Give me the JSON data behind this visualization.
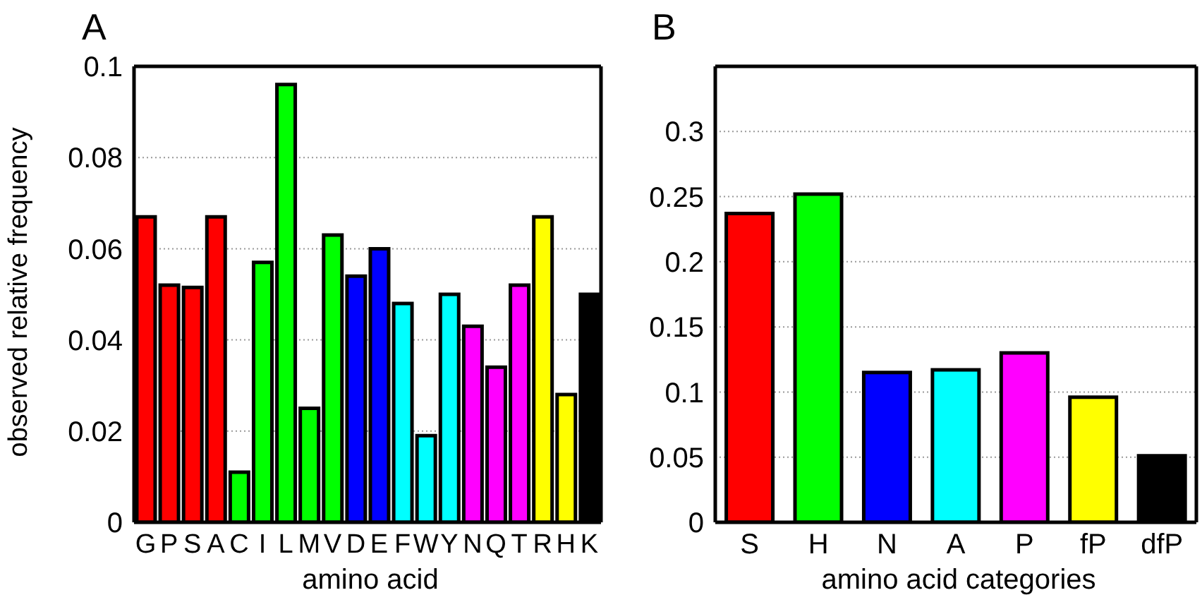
{
  "chart_data": [
    {
      "type": "bar",
      "title": "A",
      "xlabel": "amino acid",
      "ylabel": "observed relative frequency",
      "categories": [
        "G",
        "P",
        "S",
        "A",
        "C",
        "I",
        "L",
        "M",
        "V",
        "D",
        "E",
        "F",
        "W",
        "Y",
        "N",
        "Q",
        "T",
        "R",
        "H",
        "K"
      ],
      "values": [
        0.067,
        0.052,
        0.0515,
        0.067,
        0.011,
        0.057,
        0.096,
        0.025,
        0.063,
        0.054,
        0.06,
        0.048,
        0.019,
        0.05,
        0.043,
        0.034,
        0.052,
        0.067,
        0.028,
        0.05
      ],
      "colors": [
        "#ff0000",
        "#ff0000",
        "#ff0000",
        "#ff0000",
        "#00ff00",
        "#00ff00",
        "#00ff00",
        "#00ff00",
        "#00ff00",
        "#0000ff",
        "#0000ff",
        "#00ffff",
        "#00ffff",
        "#00ffff",
        "#ff00ff",
        "#ff00ff",
        "#ff00ff",
        "#ffff00",
        "#ffff00",
        "#000000"
      ],
      "ylim": [
        0,
        0.1
      ],
      "yticks": [
        0,
        0.02,
        0.04,
        0.06,
        0.08,
        0.1
      ],
      "grid": "y"
    },
    {
      "type": "bar",
      "title": "B",
      "xlabel": "amino acid categories",
      "categories": [
        "S",
        "H",
        "N",
        "A",
        "P",
        "fP",
        "dfP"
      ],
      "values": [
        0.237,
        0.252,
        0.115,
        0.117,
        0.13,
        0.096,
        0.051
      ],
      "colors": [
        "#ff0000",
        "#00ff00",
        "#0000ff",
        "#00ffff",
        "#ff00ff",
        "#ffff00",
        "#000000"
      ],
      "ylim": [
        0,
        0.35
      ],
      "yticks": [
        0,
        0.05,
        0.1,
        0.15,
        0.2,
        0.25,
        0.3
      ],
      "grid": "y"
    }
  ]
}
